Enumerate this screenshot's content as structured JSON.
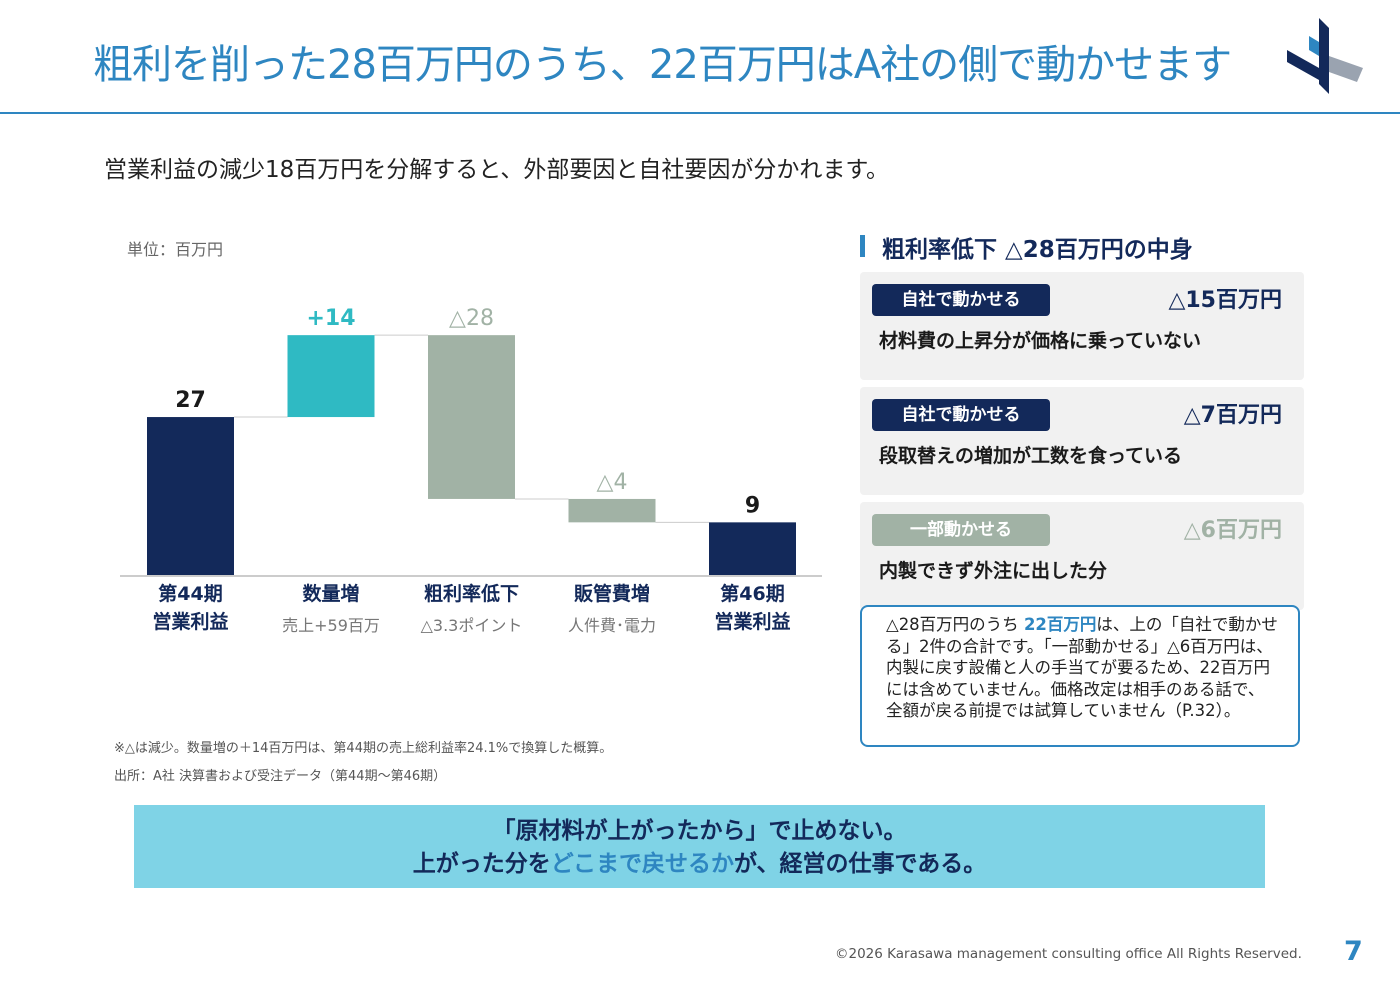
{
  "header": {
    "title": "粗利を削った28百万円のうち、22百万円はA社の側で動かせます"
  },
  "subtitle": "営業利益の減少18百万円を分解すると、外部要因と自社要因が分かれます。",
  "chart": {
    "unit_label": "単位：百万円",
    "categories": [
      {
        "label1": "第44期",
        "label2": "営業利益",
        "sub": ""
      },
      {
        "label1": "数量増",
        "label2": "",
        "sub": "売上+59百万"
      },
      {
        "label1": "粗利率低下",
        "label2": "",
        "sub": "△3.3ポイント"
      },
      {
        "label1": "販管費増",
        "label2": "",
        "sub": "人件費･電力"
      },
      {
        "label1": "第46期",
        "label2": "営業利益",
        "sub": ""
      }
    ]
  },
  "chart_data": {
    "type": "bar",
    "subtype": "waterfall",
    "categories": [
      "第44期 営業利益",
      "数量増",
      "粗利率低下",
      "販管費増",
      "第46期 営業利益"
    ],
    "steps": [
      {
        "kind": "total",
        "value": 27,
        "label": "27",
        "color": "#13295a"
      },
      {
        "kind": "increase",
        "value": 14,
        "label": "+14",
        "color": "#2fbac3"
      },
      {
        "kind": "decrease",
        "value": -28,
        "label": "△28",
        "color": "#a1b2a5"
      },
      {
        "kind": "decrease",
        "value": -4,
        "label": "△4",
        "color": "#a1b2a5"
      },
      {
        "kind": "total",
        "value": 9,
        "label": "9",
        "color": "#13295a"
      }
    ],
    "ylim": [
      0,
      45
    ],
    "unit": "百万円",
    "grid": false,
    "legend": "none"
  },
  "notes": {
    "note1": "※△は減少。数量増の＋14百万円は、第44期の売上総利益率24.1%で換算した概算。",
    "note2": "出所：A社 決算書および受注データ（第44期〜第46期）"
  },
  "panel": {
    "title": "粗利率低下 △28百万円の中身",
    "cards": [
      {
        "tag": "自社で動かせる",
        "amount": "△15百万円",
        "desc": "材料費の上昇分が価格に乗っていない",
        "tag_color": "#13295a",
        "amount_color": "#13295a"
      },
      {
        "tag": "自社で動かせる",
        "amount": "△7百万円",
        "desc": "段取替えの増加が工数を食っている",
        "tag_color": "#13295a",
        "amount_color": "#13295a"
      },
      {
        "tag": "一部動かせる",
        "amount": "△6百万円",
        "desc": "内製できず外注に出した分",
        "tag_color": "#a1b2a5",
        "amount_color": "#a1b2a5"
      }
    ],
    "callout": {
      "part1": "△28百万円のうち ",
      "highlight": "22百万円",
      "part2": "は、上の「自社で動かせる」2件の合計です。「一部動かせる」△6百万円は、内製に戻す設備と人の手当てが要るため、22百万円には含めていません。価格改定は相手のある話で、全額が戻る前提では試算していません（P.32）。"
    }
  },
  "banner": {
    "line1": "「原材料が上がったから」で止めない。",
    "line2_pre": "上がった分を",
    "line2_hl": "どこまで戻せるか",
    "line2_post": "が、経営の仕事である。"
  },
  "footer": {
    "copyright": "©2026 Karasawa management consulting office All Rights Reserved.",
    "page": "7"
  },
  "colors": {
    "accent": "#2e86c1",
    "navy": "#13295a",
    "teal": "#2fbac3",
    "gray_green": "#a1b2a5",
    "banner_bg": "#7fd3e6"
  }
}
